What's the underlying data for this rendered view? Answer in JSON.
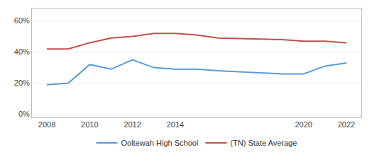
{
  "chart_data": {
    "type": "line",
    "x": [
      2008,
      2009,
      2010,
      2011,
      2012,
      2013,
      2014,
      2015,
      2016,
      2019,
      2020,
      2021,
      2022
    ],
    "series": [
      {
        "name": "Ooltewah High School",
        "color": "#5b9bd5",
        "values": [
          19,
          20,
          32,
          29,
          35,
          30,
          29,
          29,
          28,
          26,
          26,
          31,
          33
        ]
      },
      {
        "name": "(TN) State Average",
        "color": "#c0504d",
        "values": [
          42,
          42,
          46,
          49,
          50,
          52,
          52,
          51,
          49,
          48,
          47,
          47,
          46
        ]
      }
    ],
    "xlim": [
      2007.3,
      2022.7
    ],
    "xticks": [
      2008,
      2010,
      2012,
      2014,
      2020,
      2022
    ],
    "ylim": [
      -2,
      68
    ],
    "yticks": [
      {
        "value": 0,
        "label": "0%"
      },
      {
        "value": 20,
        "label": "20%"
      },
      {
        "value": 40,
        "label": "40%"
      },
      {
        "value": 60,
        "label": "60%"
      }
    ],
    "grid": true,
    "legend": "bottom"
  }
}
